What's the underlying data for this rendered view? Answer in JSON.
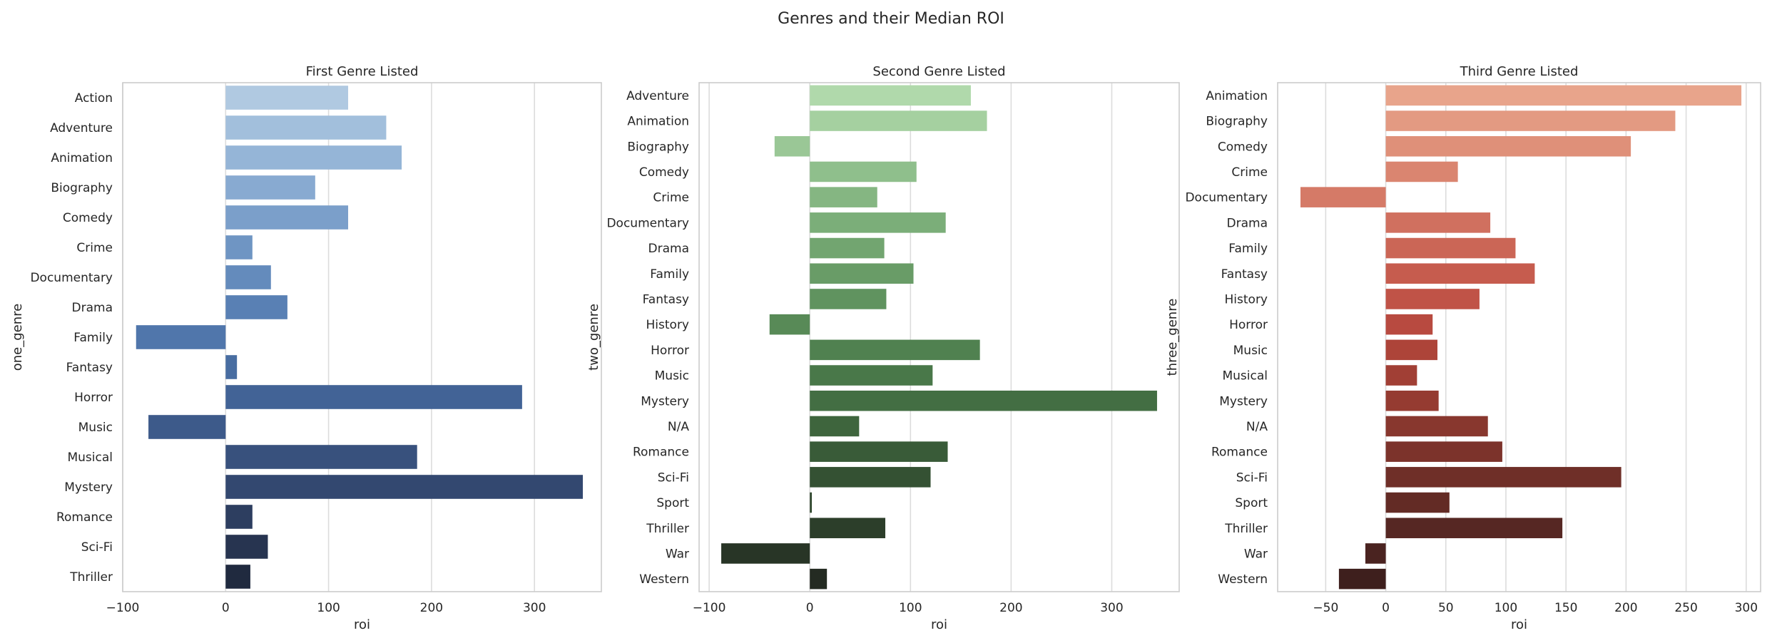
{
  "suptitle": "Genres and their Median ROI",
  "chart_data": [
    {
      "type": "bar",
      "orientation": "horizontal",
      "title": "First Genre Listed",
      "xlabel": "roi",
      "ylabel": "one_genre",
      "xlim": [
        -100,
        365
      ],
      "xticks": [
        -100,
        0,
        100,
        200,
        300
      ],
      "xtick_labels": [
        "−100",
        "0",
        "100",
        "200",
        "300"
      ],
      "categories": [
        "Action",
        "Adventure",
        "Animation",
        "Biography",
        "Comedy",
        "Crime",
        "Documentary",
        "Drama",
        "Family",
        "Fantasy",
        "Horror",
        "Music",
        "Musical",
        "Mystery",
        "Romance",
        "Sci-Fi",
        "Thriller"
      ],
      "values": [
        119,
        156,
        171,
        87,
        119,
        26,
        44,
        60,
        -87,
        11,
        288,
        -75,
        186,
        347,
        26,
        41,
        24
      ],
      "colors": [
        "#b0c9e1",
        "#a2bfdc",
        "#95b5d7",
        "#88aad1",
        "#7b9fca",
        "#6f95c3",
        "#648bbc",
        "#5980b4",
        "#5076ab",
        "#486da1",
        "#426396",
        "#3d5a8a",
        "#38517d",
        "#334870",
        "#2d3e60",
        "#273450",
        "#202a3f"
      ],
      "grid": true
    },
    {
      "type": "bar",
      "orientation": "horizontal",
      "title": "Second Genre Listed",
      "xlabel": "roi",
      "ylabel": "two_genre",
      "xlim": [
        -110,
        367
      ],
      "xticks": [
        -100,
        0,
        100,
        200,
        300
      ],
      "xtick_labels": [
        "−100",
        "0",
        "100",
        "200",
        "300"
      ],
      "categories": [
        "Adventure",
        "Animation",
        "Biography",
        "Comedy",
        "Crime",
        "Documentary",
        "Drama",
        "Family",
        "Fantasy",
        "History",
        "Horror",
        "Music",
        "Mystery",
        "N/A",
        "Romance",
        "Sci-Fi",
        "Sport",
        "Thriller",
        "War",
        "Western"
      ],
      "values": [
        160,
        176,
        -35,
        106,
        67,
        135,
        74,
        103,
        76,
        -40,
        169,
        122,
        345,
        49,
        137,
        120,
        2,
        75,
        -88,
        17
      ],
      "colors": [
        "#b0d9ab",
        "#a5d0a0",
        "#9ac796",
        "#8fbf8c",
        "#85b682",
        "#7bae79",
        "#72a570",
        "#699c67",
        "#60935f",
        "#588a57",
        "#508150",
        "#497849",
        "#436e43",
        "#3e653d",
        "#395b38",
        "#345133",
        "#30482e",
        "#2c3e2a",
        "#283526",
        "#242b22"
      ],
      "grid": true
    },
    {
      "type": "bar",
      "orientation": "horizontal",
      "title": "Third Genre Listed",
      "xlabel": "roi",
      "ylabel": "three_genre",
      "xlim": [
        -90,
        312
      ],
      "xticks": [
        -50,
        0,
        50,
        100,
        150,
        200,
        250,
        300
      ],
      "xtick_labels": [
        "−50",
        "0",
        "50",
        "100",
        "150",
        "200",
        "250",
        "300"
      ],
      "categories": [
        "Animation",
        "Biography",
        "Comedy",
        "Crime",
        "Documentary",
        "Drama",
        "Family",
        "Fantasy",
        "History",
        "Horror",
        "Music",
        "Musical",
        "Mystery",
        "N/A",
        "Romance",
        "Sci-Fi",
        "Sport",
        "Thriller",
        "War",
        "Western"
      ],
      "values": [
        296,
        241,
        204,
        60,
        -71,
        87,
        108,
        124,
        78,
        39,
        43,
        26,
        44,
        85,
        97,
        196,
        53,
        147,
        -17,
        -39
      ],
      "colors": [
        "#e8a48b",
        "#e39a82",
        "#df9079",
        "#da8570",
        "#d57a67",
        "#d0705f",
        "#cb6656",
        "#c65c4e",
        "#c05347",
        "#b84a40",
        "#ad4439",
        "#a13f35",
        "#953b31",
        "#88372e",
        "#7c332b",
        "#6f2f28",
        "#632b25",
        "#562723",
        "#4a2320",
        "#3e1f1d"
      ],
      "grid": true
    }
  ]
}
